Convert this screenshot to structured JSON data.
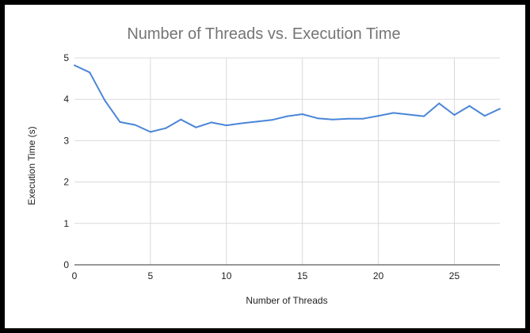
{
  "chart_data": {
    "type": "line",
    "title": "Number of Threads vs. Execution Time",
    "xlabel": "Number of Threads",
    "ylabel": "Execution Time (s)",
    "xlim": [
      0,
      28
    ],
    "ylim": [
      0,
      5
    ],
    "xticks": [
      0,
      5,
      10,
      15,
      20,
      25
    ],
    "yticks": [
      0,
      1,
      2,
      3,
      4,
      5
    ],
    "grid": true,
    "legend": "none",
    "series": [
      {
        "color": "#4a86d8",
        "x": [
          0,
          1,
          2,
          3,
          4,
          5,
          6,
          7,
          8,
          9,
          10,
          11,
          12,
          13,
          14,
          15,
          16,
          17,
          18,
          19,
          20,
          21,
          22,
          23,
          24,
          25,
          26,
          27,
          28
        ],
        "y": [
          4.82,
          4.65,
          3.97,
          3.45,
          3.38,
          3.21,
          3.3,
          3.51,
          3.32,
          3.44,
          3.37,
          3.42,
          3.46,
          3.5,
          3.59,
          3.64,
          3.54,
          3.51,
          3.53,
          3.53,
          3.6,
          3.67,
          3.63,
          3.59,
          3.9,
          3.62,
          3.84,
          3.6,
          3.77
        ]
      }
    ]
  }
}
